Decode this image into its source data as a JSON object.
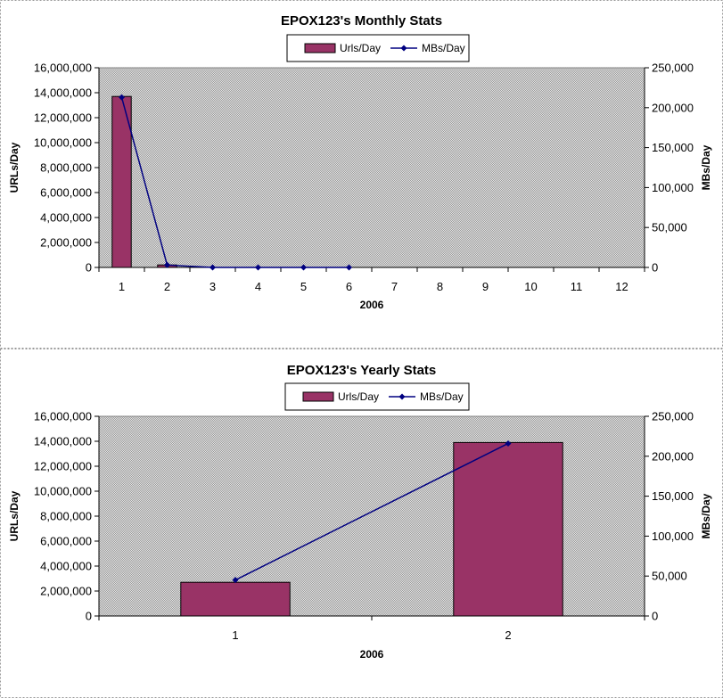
{
  "colors": {
    "bar_fill": "#993366",
    "line": "#000080",
    "plot_bg": "#c0c0c0",
    "frame_border": "#999999"
  },
  "chart_data": [
    {
      "type": "bar",
      "title": "EPOX123's Monthly Stats",
      "xlabel": "2006",
      "ylabel": "URLs/Day",
      "y2label": "MBs/Day",
      "categories": [
        "1",
        "2",
        "3",
        "4",
        "5",
        "6",
        "7",
        "8",
        "9",
        "10",
        "11",
        "12"
      ],
      "ylim": [
        0,
        16000000
      ],
      "y2lim": [
        0,
        250000
      ],
      "yticks": [
        "0",
        "2,000,000",
        "4,000,000",
        "6,000,000",
        "8,000,000",
        "10,000,000",
        "12,000,000",
        "14,000,000",
        "16,000,000"
      ],
      "y2ticks": [
        "0",
        "50,000",
        "100,000",
        "150,000",
        "200,000",
        "250,000"
      ],
      "legend": "top-center",
      "series": [
        {
          "name": "Urls/Day",
          "type": "bar",
          "axis": "left",
          "values": [
            13700000,
            200000,
            0,
            0,
            0,
            0,
            null,
            null,
            null,
            null,
            null,
            null
          ]
        },
        {
          "name": "MBs/Day",
          "type": "line",
          "axis": "right",
          "values": [
            213000,
            3000,
            0,
            0,
            0,
            0,
            null,
            null,
            null,
            null,
            null,
            null
          ]
        }
      ]
    },
    {
      "type": "bar",
      "title": "EPOX123's Yearly Stats",
      "xlabel": "2006",
      "ylabel": "URLs/Day",
      "y2label": "MBs/Day",
      "categories": [
        "1",
        "2"
      ],
      "ylim": [
        0,
        16000000
      ],
      "y2lim": [
        0,
        250000
      ],
      "yticks": [
        "0",
        "2,000,000",
        "4,000,000",
        "6,000,000",
        "8,000,000",
        "10,000,000",
        "12,000,000",
        "14,000,000",
        "16,000,000"
      ],
      "y2ticks": [
        "0",
        "50,000",
        "100,000",
        "150,000",
        "200,000",
        "250,000"
      ],
      "legend": "top-center",
      "series": [
        {
          "name": "Urls/Day",
          "type": "bar",
          "axis": "left",
          "values": [
            2700000,
            13900000
          ]
        },
        {
          "name": "MBs/Day",
          "type": "line",
          "axis": "right",
          "values": [
            45000,
            216000
          ]
        }
      ]
    }
  ]
}
